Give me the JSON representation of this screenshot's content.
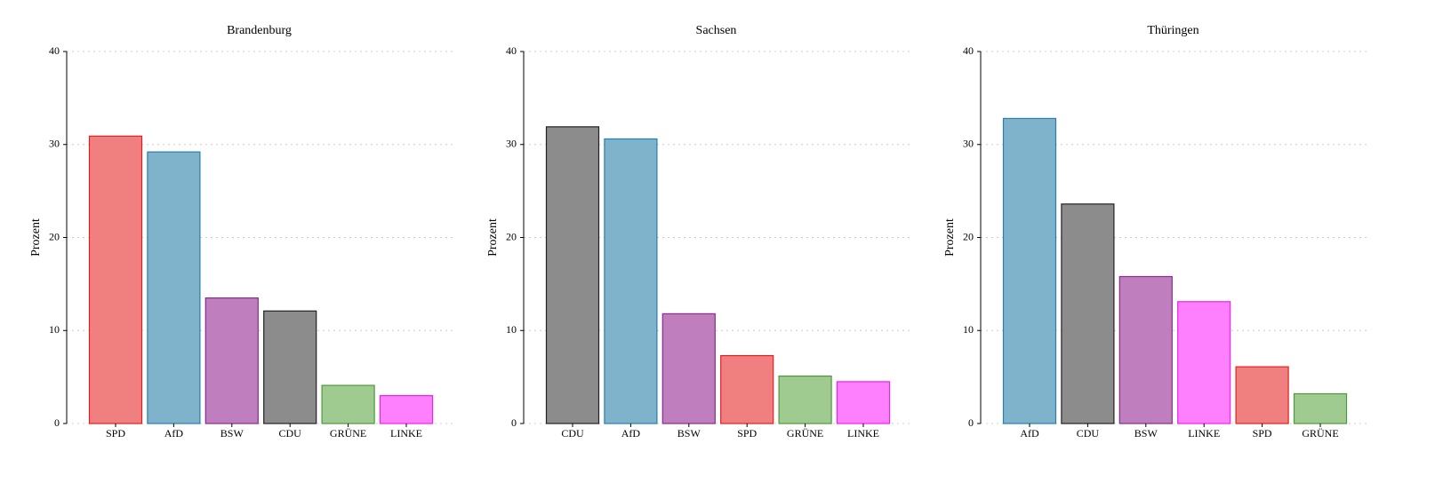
{
  "chart_data": [
    {
      "type": "bar",
      "title": "Brandenburg",
      "y_label": "Prozent",
      "categories": [
        "SPD",
        "AfD",
        "BSW",
        "CDU",
        "GRÜNE",
        "LINKE"
      ],
      "values": [
        30.9,
        29.2,
        13.5,
        12.1,
        4.1,
        3.0
      ],
      "colors": [
        "#f08080",
        "#7fb3cc",
        "#bf7fbf",
        "#8c8c8c",
        "#a0cb90",
        "#ff80ff"
      ],
      "edge_colors": [
        "#e02020",
        "#2a7fa8",
        "#8a2a8a",
        "#222222",
        "#4a9a3a",
        "#ee22ee"
      ],
      "ylim": [
        0,
        40
      ],
      "yticks": [
        0,
        10,
        20,
        30,
        40
      ],
      "grid": true
    },
    {
      "type": "bar",
      "title": "Sachsen",
      "y_label": "Prozent",
      "categories": [
        "CDU",
        "AfD",
        "BSW",
        "SPD",
        "GRÜNE",
        "LINKE"
      ],
      "values": [
        31.9,
        30.6,
        11.8,
        7.3,
        5.1,
        4.5
      ],
      "colors": [
        "#8c8c8c",
        "#7fb3cc",
        "#bf7fbf",
        "#f08080",
        "#a0cb90",
        "#ff80ff"
      ],
      "edge_colors": [
        "#222222",
        "#2a7fa8",
        "#8a2a8a",
        "#e02020",
        "#4a9a3a",
        "#ee22ee"
      ],
      "ylim": [
        0,
        40
      ],
      "yticks": [
        0,
        10,
        20,
        30,
        40
      ],
      "grid": true
    },
    {
      "type": "bar",
      "title": "Thüringen",
      "y_label": "Prozent",
      "categories": [
        "AfD",
        "CDU",
        "BSW",
        "LINKE",
        "SPD",
        "GRÜNE"
      ],
      "values": [
        32.8,
        23.6,
        15.8,
        13.1,
        6.1,
        3.2
      ],
      "colors": [
        "#7fb3cc",
        "#8c8c8c",
        "#bf7fbf",
        "#ff80ff",
        "#f08080",
        "#a0cb90"
      ],
      "edge_colors": [
        "#2a7fa8",
        "#222222",
        "#8a2a8a",
        "#ee22ee",
        "#e02020",
        "#4a9a3a"
      ],
      "ylim": [
        0,
        40
      ],
      "yticks": [
        0,
        10,
        20,
        30,
        40
      ],
      "grid": true
    }
  ]
}
